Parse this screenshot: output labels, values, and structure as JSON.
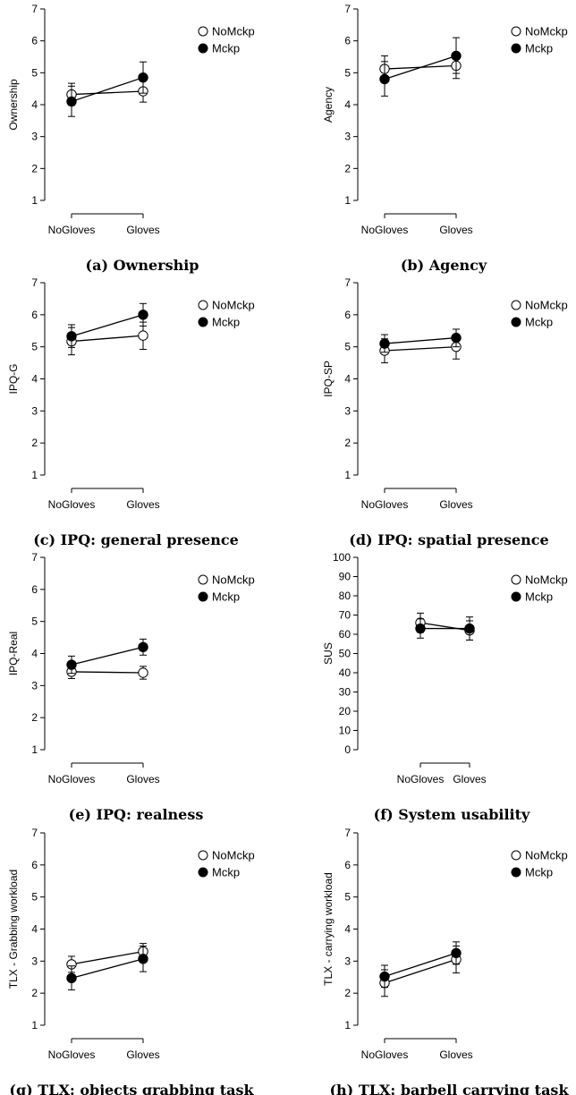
{
  "chart_data": [
    {
      "type": "line",
      "caption": "(a) Ownership",
      "ylabel": "Ownership",
      "categories": [
        "NoGloves",
        "Gloves"
      ],
      "ylim": [
        1,
        7
      ],
      "yticks": [
        "1",
        "2",
        "3",
        "4",
        "5",
        "6",
        "7"
      ],
      "legend": "top-right",
      "series": [
        {
          "name": "NoMckp",
          "marker": "open",
          "values": [
            4.32,
            4.42
          ],
          "err_low": [
            3.98,
            4.08
          ],
          "err_high": [
            4.67,
            4.77
          ]
        },
        {
          "name": "Mckp",
          "marker": "filled",
          "values": [
            4.1,
            4.85
          ],
          "err_low": [
            3.63,
            4.36
          ],
          "err_high": [
            4.58,
            5.34
          ]
        }
      ]
    },
    {
      "type": "line",
      "caption": "(b) Agency",
      "ylabel": "Agency",
      "categories": [
        "NoGloves",
        "Gloves"
      ],
      "ylim": [
        1,
        7
      ],
      "yticks": [
        "1",
        "2",
        "3",
        "4",
        "5",
        "6",
        "7"
      ],
      "legend": "top-right",
      "series": [
        {
          "name": "NoMckp",
          "marker": "open",
          "values": [
            5.12,
            5.22
          ],
          "err_low": [
            4.72,
            4.82
          ],
          "err_high": [
            5.53,
            5.64
          ]
        },
        {
          "name": "Mckp",
          "marker": "filled",
          "values": [
            4.8,
            5.53
          ],
          "err_low": [
            4.27,
            4.98
          ],
          "err_high": [
            5.35,
            6.1
          ]
        }
      ]
    },
    {
      "type": "line",
      "caption": "(c) IPQ: general presence",
      "ylabel": "IPQ-G",
      "categories": [
        "NoGloves",
        "Gloves"
      ],
      "ylim": [
        1,
        7
      ],
      "yticks": [
        "1",
        "2",
        "3",
        "4",
        "5",
        "6",
        "7"
      ],
      "legend": "top-right",
      "series": [
        {
          "name": "NoMckp",
          "marker": "open",
          "values": [
            5.17,
            5.35
          ],
          "err_low": [
            4.75,
            4.92
          ],
          "err_high": [
            5.6,
            5.77
          ]
        },
        {
          "name": "Mckp",
          "marker": "filled",
          "values": [
            5.33,
            6.0
          ],
          "err_low": [
            4.98,
            5.65
          ],
          "err_high": [
            5.69,
            6.35
          ]
        }
      ]
    },
    {
      "type": "line",
      "caption": "(d) IPQ: spatial presence",
      "ylabel": "IPQ-SP",
      "categories": [
        "NoGloves",
        "Gloves"
      ],
      "ylim": [
        1,
        7
      ],
      "yticks": [
        "1",
        "2",
        "3",
        "4",
        "5",
        "6",
        "7"
      ],
      "legend": "top-right",
      "series": [
        {
          "name": "NoMckp",
          "marker": "open",
          "values": [
            4.88,
            5.0
          ],
          "err_low": [
            4.5,
            4.62
          ],
          "err_high": [
            5.25,
            5.38
          ]
        },
        {
          "name": "Mckp",
          "marker": "filled",
          "values": [
            5.1,
            5.28
          ],
          "err_low": [
            4.83,
            5.0
          ],
          "err_high": [
            5.38,
            5.55
          ]
        }
      ]
    },
    {
      "type": "line",
      "caption": "(e) IPQ: realness",
      "ylabel": "IPQ-Real",
      "categories": [
        "NoGloves",
        "Gloves"
      ],
      "ylim": [
        1,
        7
      ],
      "yticks": [
        "1",
        "2",
        "3",
        "4",
        "5",
        "6",
        "7"
      ],
      "legend": "top-right",
      "series": [
        {
          "name": "NoMckp",
          "marker": "open",
          "values": [
            3.43,
            3.4
          ],
          "err_low": [
            3.22,
            3.2
          ],
          "err_high": [
            3.63,
            3.6
          ]
        },
        {
          "name": "Mckp",
          "marker": "filled",
          "values": [
            3.65,
            4.2
          ],
          "err_low": [
            3.38,
            3.95
          ],
          "err_high": [
            3.92,
            4.45
          ]
        }
      ]
    },
    {
      "type": "line",
      "caption": "(f) System usability",
      "ylabel": "SUS",
      "categories": [
        "NoGloves",
        "Gloves"
      ],
      "ylim": [
        0,
        100
      ],
      "yticks": [
        "0",
        "10",
        "20",
        "30",
        "40",
        "50",
        "60",
        "70",
        "80",
        "90",
        "100"
      ],
      "legend": "top-right",
      "series": [
        {
          "name": "NoMckp",
          "marker": "open",
          "values": [
            66,
            62
          ],
          "err_low": [
            61,
            57
          ],
          "err_high": [
            71,
            67
          ]
        },
        {
          "name": "Mckp",
          "marker": "filled",
          "values": [
            63,
            63
          ],
          "err_low": [
            58,
            57
          ],
          "err_high": [
            68,
            69
          ]
        }
      ]
    },
    {
      "type": "line",
      "caption": "(g) TLX: objects grabbing task",
      "ylabel": "TLX - Grabbing workload",
      "categories": [
        "NoGloves",
        "Gloves"
      ],
      "ylim": [
        1,
        7
      ],
      "yticks": [
        "1",
        "2",
        "3",
        "4",
        "5",
        "6",
        "7"
      ],
      "legend": "top-right",
      "series": [
        {
          "name": "NoMckp",
          "marker": "open",
          "values": [
            2.9,
            3.3
          ],
          "err_low": [
            2.65,
            3.05
          ],
          "err_high": [
            3.15,
            3.55
          ]
        },
        {
          "name": "Mckp",
          "marker": "filled",
          "values": [
            2.47,
            3.07
          ],
          "err_low": [
            2.1,
            2.67
          ],
          "err_high": [
            2.85,
            3.47
          ]
        }
      ]
    },
    {
      "type": "line",
      "caption": "(h) TLX: barbell carrying task",
      "ylabel": "TLX - carrying workload",
      "categories": [
        "NoGloves",
        "Gloves"
      ],
      "ylim": [
        1,
        7
      ],
      "yticks": [
        "1",
        "2",
        "3",
        "4",
        "5",
        "6",
        "7"
      ],
      "legend": "top-right",
      "series": [
        {
          "name": "NoMckp",
          "marker": "open",
          "values": [
            2.32,
            3.05
          ],
          "err_low": [
            1.9,
            2.63
          ],
          "err_high": [
            2.73,
            3.47
          ]
        },
        {
          "name": "Mckp",
          "marker": "filled",
          "values": [
            2.52,
            3.25
          ],
          "err_low": [
            2.18,
            2.9
          ],
          "err_high": [
            2.87,
            3.6
          ]
        }
      ]
    }
  ]
}
